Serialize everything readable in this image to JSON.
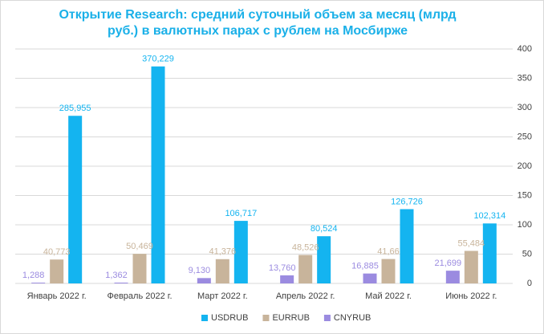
{
  "chart_data": {
    "type": "bar",
    "title": "Открытие Research: средний суточный объем за месяц (млрд руб.) в валютных парах с рублем на Мосбирже",
    "categories": [
      "Январь 2022 г.",
      "Февраль 2022 г.",
      "Март 2022 г.",
      "Апрель 2022 г.",
      "Май 2022 г.",
      "Июнь 2022 г."
    ],
    "series": [
      {
        "name": "USDRUB",
        "color": "#14b4f0",
        "values": [
          285.955,
          370.229,
          106.717,
          80.524,
          126.726,
          102.314
        ],
        "value_labels": [
          "285,955",
          "370,229",
          "106,717",
          "80,524",
          "126,726",
          "102,314"
        ]
      },
      {
        "name": "EURRUB",
        "color": "#c8b49b",
        "values": [
          40.773,
          50.469,
          41.376,
          48.526,
          41.66,
          55.484
        ],
        "value_labels": [
          "40,773",
          "50,469",
          "41,376",
          "48,526",
          "41,66",
          "55,484"
        ]
      },
      {
        "name": "CNYRUB",
        "color": "#9b8be0",
        "values": [
          1.288,
          1.362,
          9.13,
          13.76,
          16.885,
          21.699
        ],
        "value_labels": [
          "1,288",
          "1,362",
          "9,130",
          "13,760",
          "16,885",
          "21,699"
        ]
      }
    ],
    "ylim": [
      0,
      400
    ],
    "yticks": [
      0,
      50,
      100,
      150,
      200,
      250,
      300,
      350,
      400
    ],
    "grid": true,
    "legend": "bottom"
  }
}
